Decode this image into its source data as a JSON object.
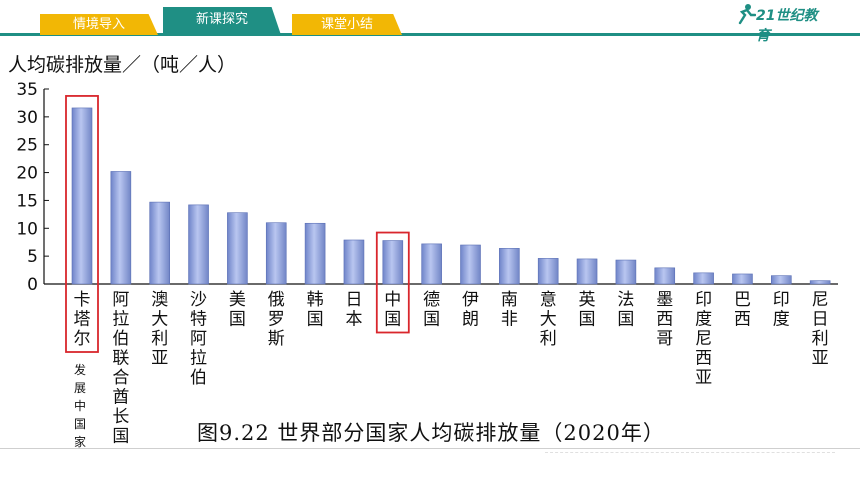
{
  "nav": {
    "tabs": [
      {
        "label": "情境导入",
        "active": false
      },
      {
        "label": "新课探究",
        "active": true
      },
      {
        "label": "课堂小结",
        "active": false
      }
    ],
    "logo_text": "21世纪教育"
  },
  "colors": {
    "accent_teal": "#1f8f84",
    "tab_yellow": "#f2b705",
    "bar_fill": "#8fa3dd",
    "highlight_red": "#d9262c"
  },
  "chart_data": {
    "type": "bar",
    "title": "图9.22 世界部分国家人均碳排放量（2020年）",
    "ylabel": "人均碳排放量／（吨／人）",
    "xlabel": "",
    "ylim": [
      0,
      35
    ],
    "yticks": [
      0,
      5,
      10,
      15,
      20,
      25,
      30,
      35
    ],
    "grid": false,
    "categories": [
      "卡塔尔",
      "阿拉伯联合酋长国",
      "澳大利亚",
      "沙特阿拉伯",
      "美国",
      "俄罗斯",
      "韩国",
      "日本",
      "中国",
      "德国",
      "伊朗",
      "南非",
      "意大利",
      "英国",
      "法国",
      "墨西哥",
      "印度尼西亚",
      "巴西",
      "印度",
      "尼日利亚"
    ],
    "values": [
      31.6,
      20.2,
      14.7,
      14.2,
      12.8,
      11.0,
      10.9,
      7.9,
      7.8,
      7.2,
      7.0,
      6.4,
      4.6,
      4.5,
      4.3,
      2.9,
      2.0,
      1.8,
      1.5,
      0.6
    ],
    "highlighted": [
      "卡塔尔",
      "中国"
    ],
    "annotation": "发展中国家"
  }
}
